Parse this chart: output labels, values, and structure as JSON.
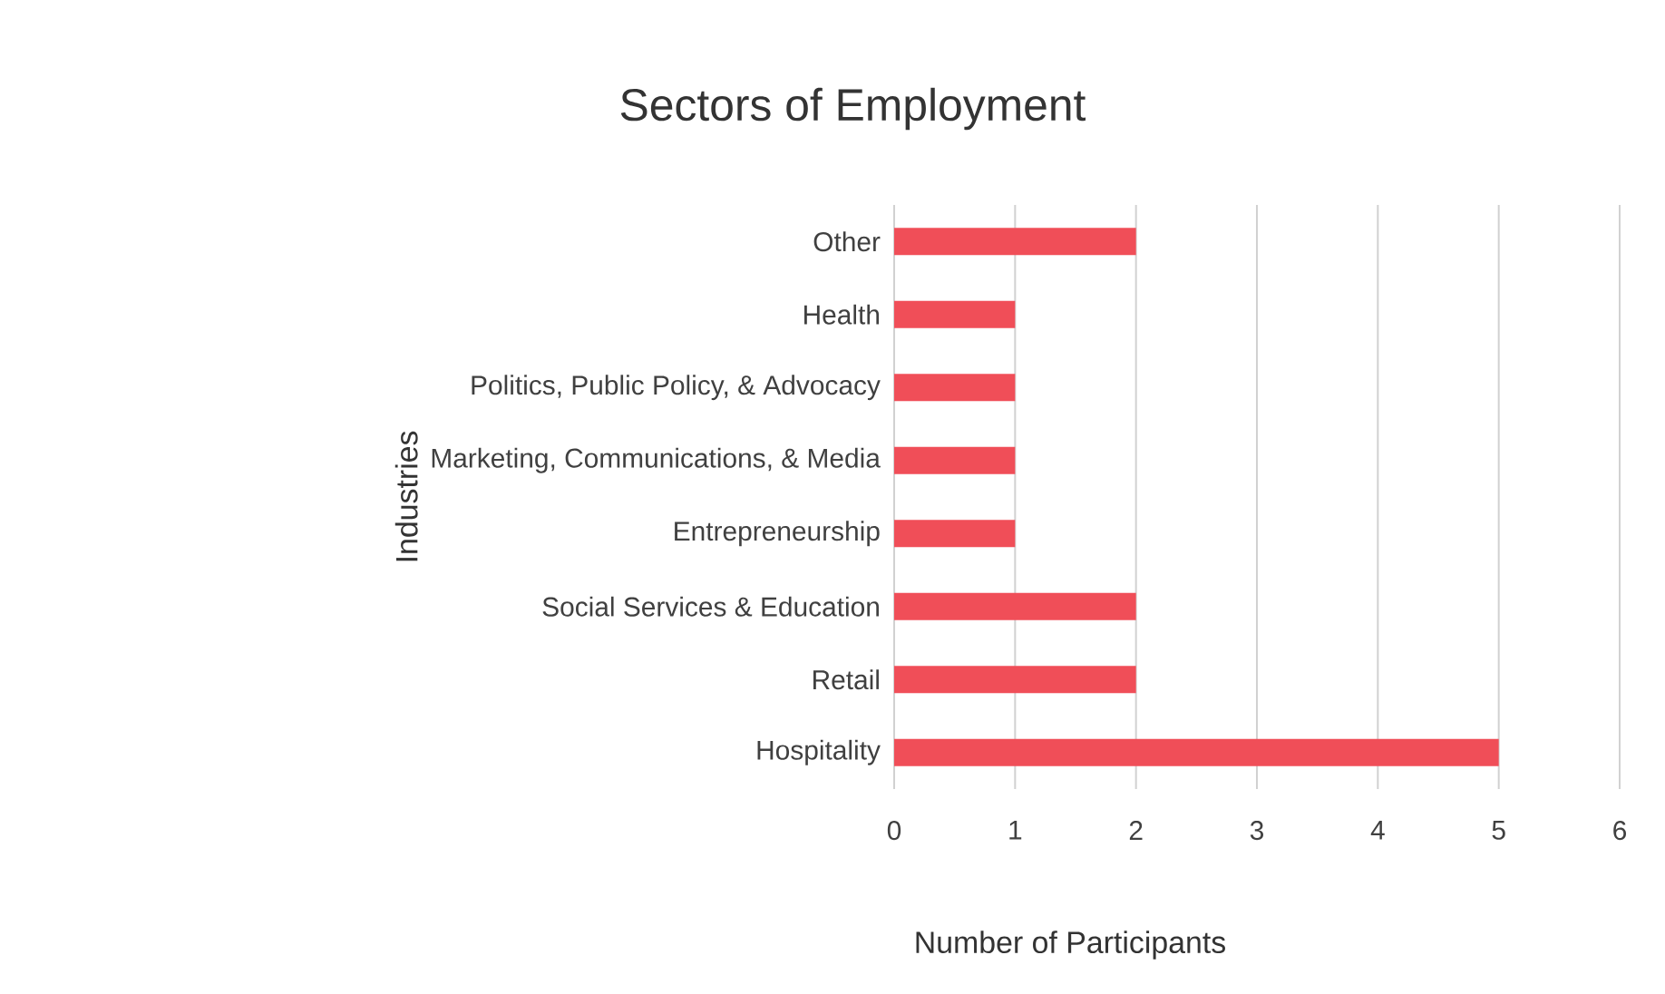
{
  "chart_data": {
    "type": "bar",
    "orientation": "horizontal",
    "title": "Sectors of Employment",
    "xlabel": "Number of Participants",
    "ylabel": "Industries",
    "categories": [
      "Other",
      "Health",
      "Politics, Public Policy, & Advocacy",
      "Marketing, Communications, & Media",
      "Entrepreneurship",
      "Social Services & Education",
      "Retail",
      "Hospitality"
    ],
    "values": [
      2,
      1,
      1,
      1,
      1,
      2,
      2,
      5
    ],
    "color": "#f04e58",
    "xlim": [
      0,
      6
    ],
    "xticks": [
      0,
      1,
      2,
      3,
      4,
      5,
      6
    ],
    "grid": "x"
  }
}
